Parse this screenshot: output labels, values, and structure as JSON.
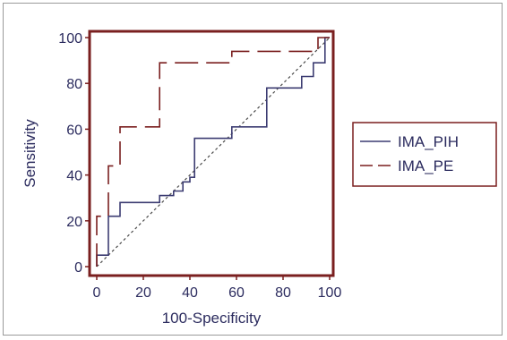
{
  "chart_data": {
    "type": "line",
    "title": "",
    "xlabel": "100-Specificity",
    "ylabel": "Sensitivity",
    "xlim": [
      0,
      100
    ],
    "ylim": [
      0,
      100
    ],
    "xticks": [
      "0",
      "20",
      "40",
      "60",
      "80",
      "100"
    ],
    "yticks": [
      "0",
      "20",
      "40",
      "60",
      "80",
      "100"
    ],
    "grid": false,
    "legend_position": "right",
    "colors": {
      "frame": "#7a1f1f",
      "text": "#2b2b5e",
      "pih": "#3c3c72",
      "pe": "#7a1f1f",
      "reference": "#4a4a4a"
    },
    "series": [
      {
        "name": "IMA_PIH",
        "style": "solid",
        "color": "#3c3c72",
        "points": [
          [
            0,
            0
          ],
          [
            0,
            5
          ],
          [
            5,
            5
          ],
          [
            5,
            22
          ],
          [
            10,
            22
          ],
          [
            10,
            28
          ],
          [
            27,
            28
          ],
          [
            27,
            31
          ],
          [
            33,
            31
          ],
          [
            33,
            33
          ],
          [
            37,
            33
          ],
          [
            37,
            37
          ],
          [
            40,
            37
          ],
          [
            40,
            39
          ],
          [
            42,
            39
          ],
          [
            42,
            56
          ],
          [
            58,
            56
          ],
          [
            58,
            61
          ],
          [
            73,
            61
          ],
          [
            73,
            78
          ],
          [
            88,
            78
          ],
          [
            88,
            83
          ],
          [
            93,
            83
          ],
          [
            93,
            89
          ],
          [
            98,
            89
          ],
          [
            98,
            100
          ],
          [
            100,
            100
          ]
        ]
      },
      {
        "name": "IMA_PE",
        "style": "dashed",
        "color": "#7a1f1f",
        "points": [
          [
            0,
            0
          ],
          [
            0,
            22
          ],
          [
            5,
            22
          ],
          [
            5,
            44
          ],
          [
            10,
            44
          ],
          [
            10,
            61
          ],
          [
            27,
            61
          ],
          [
            27,
            89
          ],
          [
            58,
            89
          ],
          [
            58,
            94
          ],
          [
            95,
            94
          ],
          [
            95,
            100
          ],
          [
            100,
            100
          ]
        ]
      },
      {
        "name": "",
        "style": "dotted",
        "color": "#4a4a4a",
        "points": [
          [
            0,
            0
          ],
          [
            100,
            100
          ]
        ]
      }
    ]
  }
}
